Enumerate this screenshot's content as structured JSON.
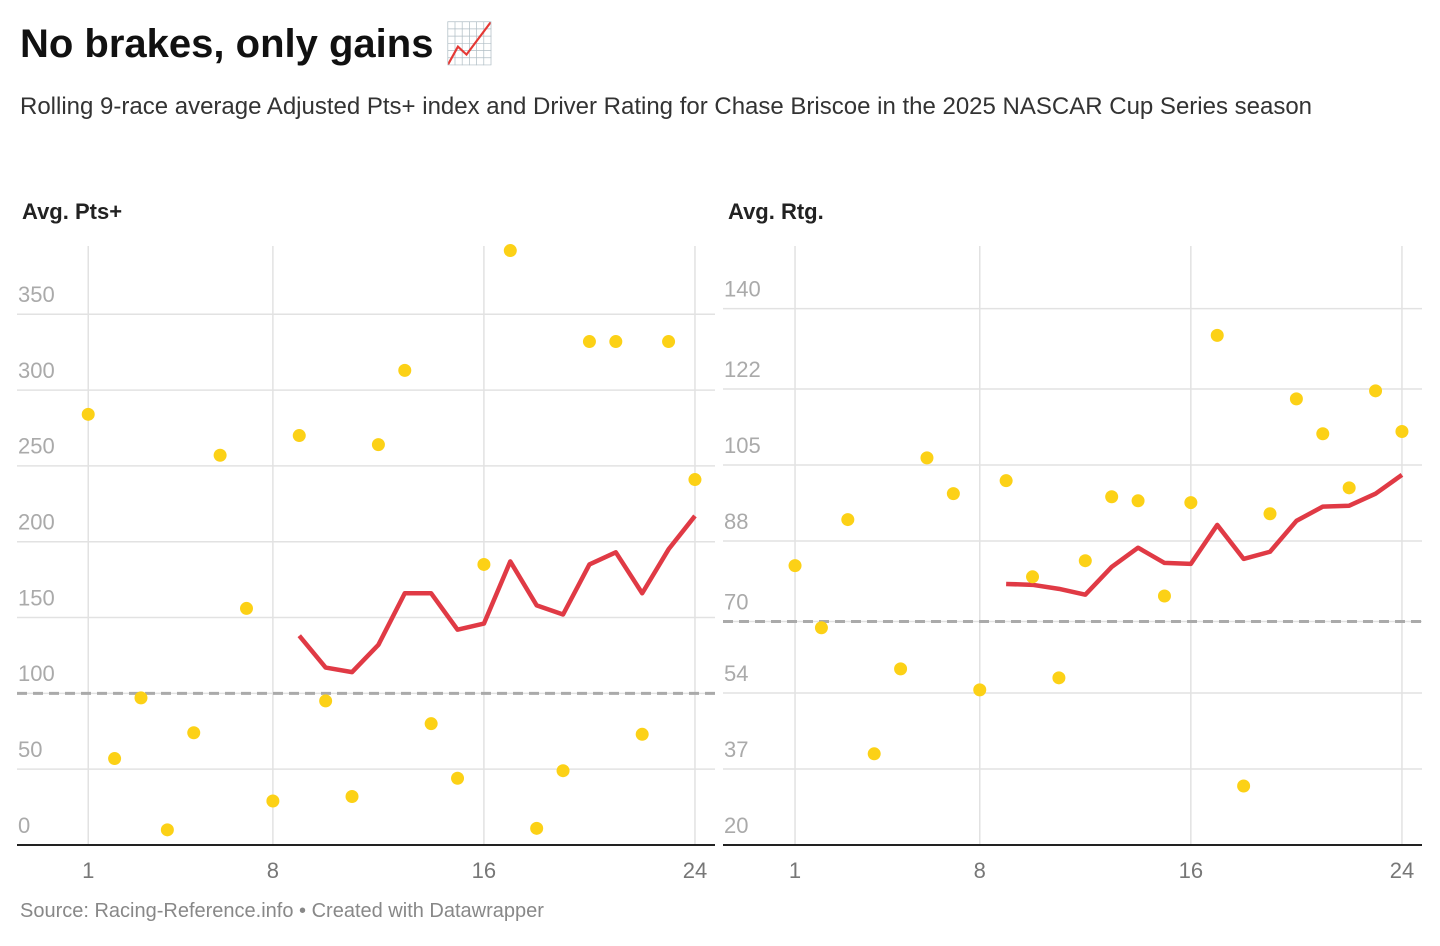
{
  "header": {
    "title": "No brakes, only gains 📈",
    "subtitle": "Rolling 9-race average Adjusted Pts+ index and Driver Rating for Chase Briscoe in the 2025 NASCAR Cup Series season",
    "source": "Source: Racing-Reference.info • Created with Datawrapper"
  },
  "chart_data": [
    {
      "type": "scatter",
      "title": "Avg. Pts+",
      "x": [
        1,
        2,
        3,
        4,
        5,
        6,
        7,
        8,
        9,
        10,
        11,
        12,
        13,
        14,
        15,
        16,
        17,
        18,
        19,
        20,
        21,
        22,
        23,
        24
      ],
      "series": [
        {
          "style": "dot",
          "color": "#fcd116",
          "values": [
            284,
            57,
            97,
            10,
            74,
            257,
            156,
            29,
            270,
            95,
            32,
            264,
            313,
            80,
            44,
            185,
            392,
            11,
            49,
            332,
            332,
            73,
            332,
            241
          ]
        },
        {
          "style": "line",
          "color": "#e03a45",
          "values": [
            null,
            null,
            null,
            null,
            null,
            null,
            null,
            null,
            138,
            117,
            114,
            132,
            166,
            166,
            142,
            146,
            187,
            158,
            152,
            185,
            193,
            166,
            195,
            217
          ]
        }
      ],
      "xlim": [
        -1.7,
        24.76
      ],
      "xticks": [
        1,
        8,
        16,
        24
      ],
      "ylim": [
        0,
        395
      ],
      "yticks": [
        0,
        50,
        100,
        150,
        200,
        250,
        300,
        350
      ],
      "reference_line": 100,
      "grid": true
    },
    {
      "type": "scatter",
      "title": "Avg. Rtg.",
      "x": [
        1,
        2,
        3,
        4,
        5,
        6,
        7,
        8,
        9,
        10,
        11,
        12,
        13,
        14,
        15,
        16,
        17,
        18,
        19,
        20,
        21,
        22,
        23,
        24
      ],
      "series": [
        {
          "style": "dot",
          "color": "#fcd116",
          "values": [
            82.5,
            68.6,
            92.8,
            40.4,
            59.4,
            106.6,
            98.6,
            54.7,
            101.5,
            80,
            57.4,
            83.6,
            97.9,
            97,
            75.7,
            96.6,
            134,
            33.2,
            94.1,
            119.8,
            112,
            99.9,
            121.6,
            112.5
          ]
        },
        {
          "style": "line",
          "color": "#e03a45",
          "values": [
            null,
            null,
            null,
            null,
            null,
            null,
            null,
            null,
            78.4,
            78.2,
            77.3,
            76,
            82.2,
            86.5,
            83.1,
            82.9,
            91.6,
            84,
            85.6,
            92.5,
            95.7,
            95.9,
            98.6,
            102.8
          ]
        }
      ],
      "xlim": [
        -1.73,
        24.76
      ],
      "xticks": [
        1,
        8,
        16,
        24
      ],
      "ylim": [
        20,
        154
      ],
      "yticks": [
        20,
        37,
        54,
        70,
        88,
        105,
        122,
        140
      ],
      "reference_line": 70,
      "grid": true
    }
  ]
}
